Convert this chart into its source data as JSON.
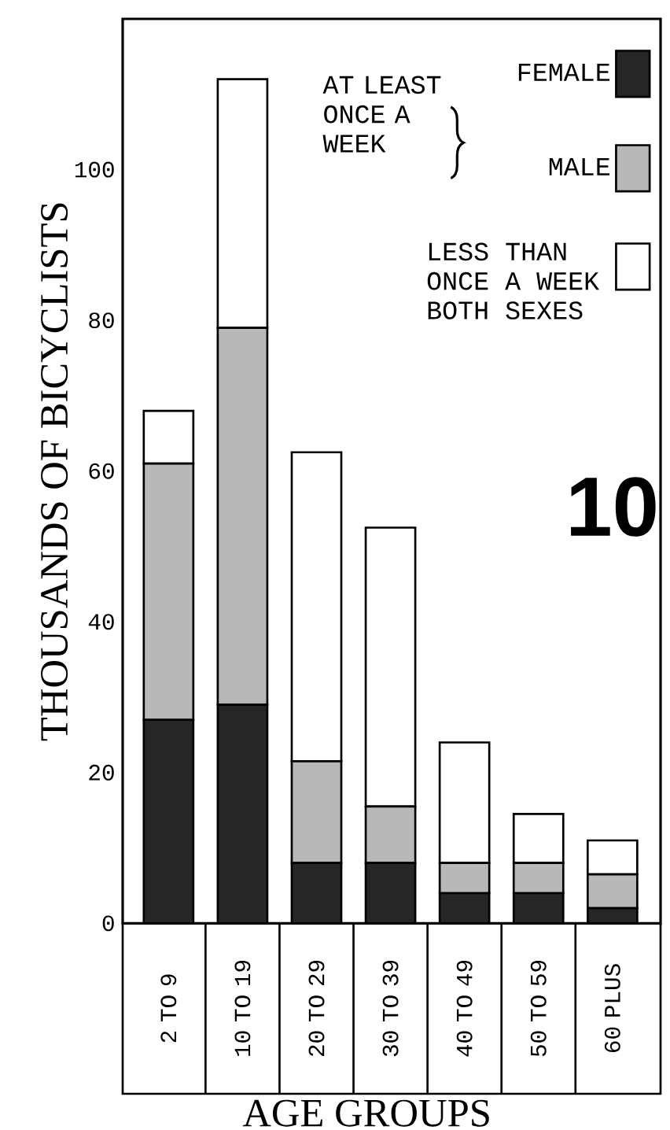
{
  "chart_data": {
    "type": "bar",
    "stacked": true,
    "xlabel": "AGE GROUPS",
    "ylabel": "THOUSANDS OF BICYCLISTS",
    "legend_title": "AT LEAST ONCE A WEEK",
    "categories": [
      "2 TO 9",
      "10 TO 19",
      "20 TO 29",
      "30 TO 39",
      "40 TO 49",
      "50 TO 59",
      "60 PLUS"
    ],
    "series": [
      {
        "name": "FEMALE",
        "color": "#262626",
        "values": [
          27,
          29,
          8,
          8,
          4,
          4,
          2
        ]
      },
      {
        "name": "MALE",
        "color": "#b8b8b8",
        "values": [
          34,
          50,
          13.5,
          7.5,
          4,
          4,
          4.5
        ]
      },
      {
        "name": "LESS THAN ONCE A WEEK BOTH SEXES",
        "color": "#ffffff",
        "values": [
          7,
          33,
          41,
          37,
          16,
          6.5,
          4.5
        ]
      }
    ],
    "ylim": [
      0,
      120
    ],
    "yticks": [
      0,
      20,
      40,
      60,
      80,
      100
    ],
    "legend": "top right",
    "annotations": [
      "10"
    ]
  }
}
